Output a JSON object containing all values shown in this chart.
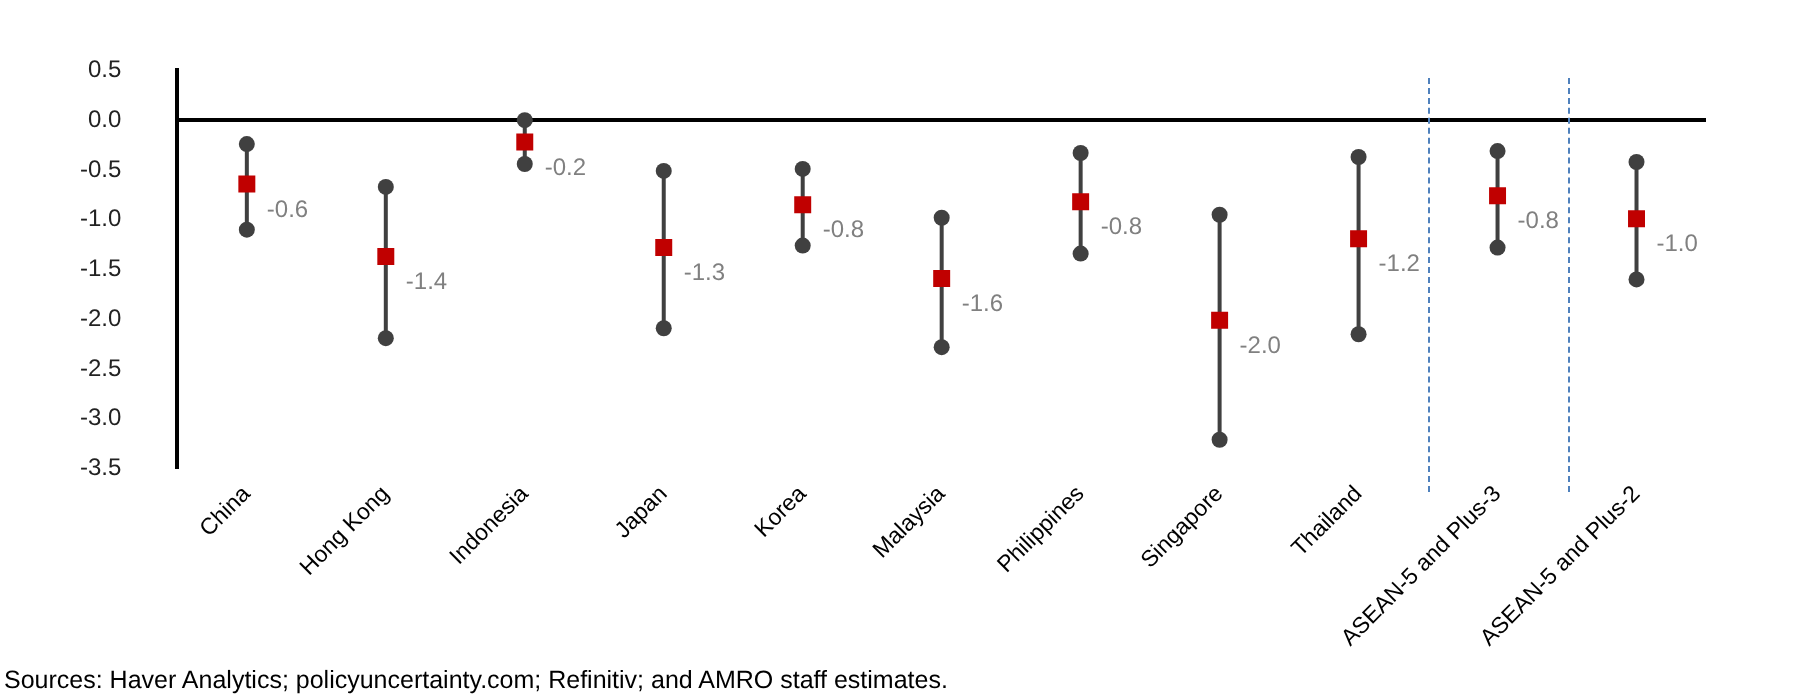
{
  "chart_data": {
    "type": "line",
    "categories": [
      "China",
      "Hong Kong",
      "Indonesia",
      "Japan",
      "Korea",
      "Malaysia",
      "Philippines",
      "Singapore",
      "Thailand",
      "ASEAN-5 and Plus-3",
      "ASEAN-5 and Plus-2"
    ],
    "series": [
      {
        "x": [
          "China",
          "China"
        ],
        "values": [
          -1.1,
          -0.24
        ]
      },
      {
        "x": [
          "Hong Kong",
          "Hong Kong"
        ],
        "values": [
          -2.19,
          -0.67
        ]
      },
      {
        "x": [
          "Indonesia",
          "Indonesia"
        ],
        "values": [
          -0.44,
          0.0
        ]
      },
      {
        "x": [
          "Japan",
          "Japan"
        ],
        "values": [
          -2.09,
          -0.51
        ]
      },
      {
        "x": [
          "Korea",
          "Korea"
        ],
        "values": [
          -1.26,
          -0.49
        ]
      },
      {
        "x": [
          "Malaysia",
          "Malaysia"
        ],
        "values": [
          -2.28,
          -0.98
        ]
      },
      {
        "x": [
          "Philippines",
          "Philippines"
        ],
        "values": [
          -1.34,
          -0.33
        ]
      },
      {
        "x": [
          "Singapore",
          "Singapore"
        ],
        "values": [
          -3.21,
          -0.95
        ]
      },
      {
        "x": [
          "Thailand",
          "Thailand"
        ],
        "values": [
          -2.15,
          -0.37
        ]
      },
      {
        "x": [
          "ASEAN-5 and Plus-3",
          "ASEAN-5 and Plus-3"
        ],
        "values": [
          -1.28,
          -0.31
        ]
      },
      {
        "x": [
          "ASEAN-5 and Plus-2",
          "ASEAN-5 and Plus-2"
        ],
        "values": [
          -1.6,
          -0.42
        ]
      },
      {
        "type": "scatter",
        "marker": "square",
        "color": "#c00000",
        "values": [
          -0.64,
          -1.37,
          -0.22,
          -1.28,
          -0.85,
          -1.59,
          -0.82,
          -2.01,
          -1.19,
          -0.76,
          -0.99
        ],
        "value_labels": [
          "-0.6",
          "-1.4",
          "-0.2",
          "-1.3",
          "-0.8",
          "-1.6",
          "-0.8",
          "-2.0",
          "-1.2",
          "-0.8",
          "-1.0"
        ]
      }
    ],
    "color": "#404040",
    "marker": "circle",
    "ylim": [
      -3.5,
      0.5
    ],
    "yticks": [
      {
        "value": 0.5,
        "label": "0.5"
      },
      {
        "value": 0,
        "label": "0.0"
      },
      {
        "value": -0.5,
        "label": "-0.5"
      },
      {
        "value": -1,
        "label": "-1.0"
      },
      {
        "value": -1.5,
        "label": "-1.5"
      },
      {
        "value": -2,
        "label": "-2.0"
      },
      {
        "value": -2.5,
        "label": "-2.5"
      },
      {
        "value": -3,
        "label": "-3.0"
      },
      {
        "value": -3.5,
        "label": "-3.5"
      }
    ],
    "grid": false,
    "legend": false,
    "annotations": [
      "Sources: Haver Analytics; policyuncertainty.com; Refinitiv; and AMRO staff estimates."
    ]
  }
}
